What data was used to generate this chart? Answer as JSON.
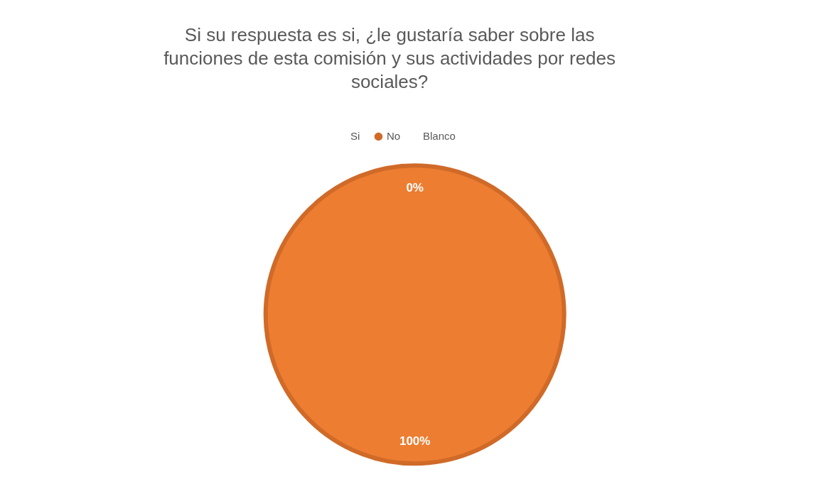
{
  "chart_data": {
    "type": "pie",
    "title": "Si su respuesta es si, ¿le gustaría saber sobre las funciones de esta comisión y sus actividades por redes sociales?",
    "categories": [
      "Si",
      "No",
      "Blanco"
    ],
    "values": [
      0,
      100,
      0
    ],
    "colors": [
      "#5b9bd5",
      "#ed7d31",
      "#a5a5a5"
    ],
    "value_labels": [
      "0%",
      "100%",
      null
    ],
    "legend": "top"
  }
}
